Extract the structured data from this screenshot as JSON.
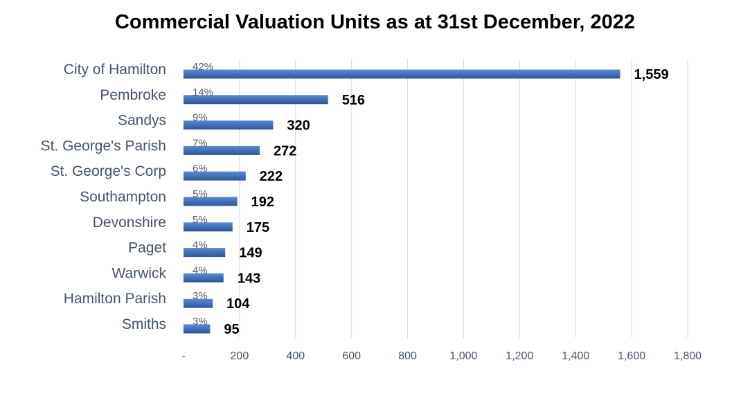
{
  "chart_data": {
    "type": "bar",
    "orientation": "horizontal",
    "title": "Commercial Valuation Units as at 31st December, 2022",
    "categories": [
      "City of Hamilton",
      "Pembroke",
      "Sandys",
      "St. George's Parish",
      "St. George's Corp",
      "Southampton",
      "Devonshire",
      "Paget",
      "Warwick",
      "Hamilton Parish",
      "Smiths"
    ],
    "values": [
      1559,
      516,
      320,
      272,
      222,
      192,
      175,
      149,
      143,
      104,
      95
    ],
    "value_labels": [
      "1,559",
      "516",
      "320",
      "272",
      "222",
      "192",
      "175",
      "149",
      "143",
      "104",
      "95"
    ],
    "percent_labels": [
      "42%",
      "14%",
      "9%",
      "7%",
      "6%",
      "5%",
      "5%",
      "4%",
      "4%",
      "3%",
      "3%"
    ],
    "xlim": [
      0,
      1800
    ],
    "x_ticks": [
      0,
      200,
      400,
      600,
      800,
      1000,
      1200,
      1400,
      1600,
      1800
    ],
    "x_tick_labels": [
      "-",
      "200",
      "400",
      "600",
      "800",
      "1,000",
      "1,200",
      "1,400",
      "1,600",
      "1,800"
    ],
    "xlabel": "",
    "ylabel": "",
    "grid": "vertical",
    "legend": "none",
    "colors": {
      "bar": "#4472c4",
      "bar_dark": "#2f5597",
      "grid": "#d9d9d9",
      "axis_text": "#44546a"
    }
  }
}
